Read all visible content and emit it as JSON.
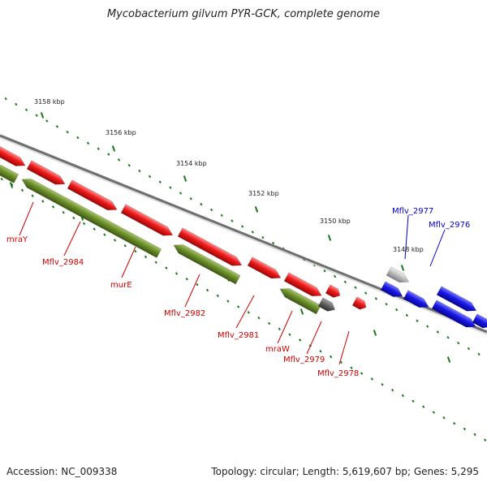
{
  "title": "Mycobacterium gilvum PYR-GCK, complete genome",
  "footer": {
    "accession": "Accession: NC_009338",
    "stats": "Topology: circular; Length: 5,619,607 bp; Genes: 5,295"
  },
  "colors": {
    "forward_gene": "#e8131a",
    "forward_gene_dark": "#9c0a0e",
    "reverse_gene": "#6b8f2a",
    "reverse_gene_dark": "#3f5a12",
    "other_gene": "#1515e0",
    "pseudo_gene": "#aaaaaa",
    "backbone": "#8a8a8a",
    "ticks": "#1a7a1a",
    "label_forward": "#cc0000",
    "label_other": "#0000cc"
  },
  "kbp_labels": [
    "3158 kbp",
    "3156 kbp",
    "3154 kbp",
    "3152 kbp",
    "3150 kbp",
    "3148 kbp"
  ],
  "red_gene_labels": [
    "mraY",
    "Mflv_2984",
    "murE",
    "Mflv_2982",
    "Mflv_2981",
    "mraW",
    "Mflv_2979",
    "Mflv_2978"
  ],
  "blue_gene_labels": [
    "Mflv_2977",
    "Mflv_2976"
  ]
}
